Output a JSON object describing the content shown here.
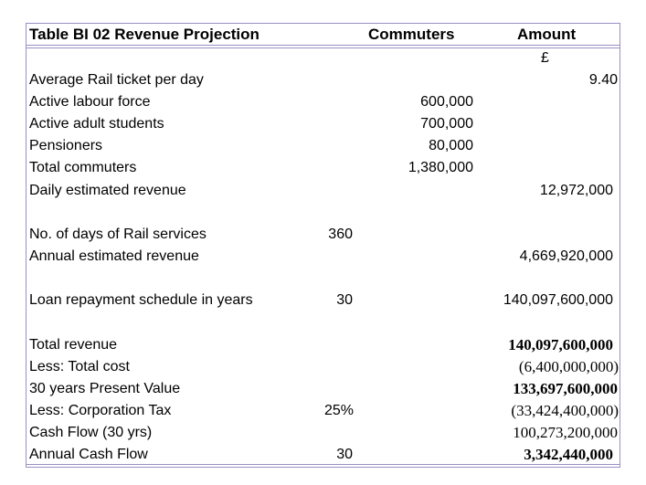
{
  "table": {
    "title": "Table BI 02   Revenue Projection",
    "col_commuters": "Commuters",
    "col_amount": "Amount",
    "currency": "£"
  },
  "rows": [
    {
      "label": "Average Rail ticket per day",
      "mid": "",
      "amount": "9.40"
    },
    {
      "label": "Active labour force",
      "mid": "600,000",
      "amount": ""
    },
    {
      "label": "Active adult students",
      "mid": "700,000",
      "amount": ""
    },
    {
      "label": "Pensioners",
      "mid": "80,000",
      "amount": ""
    },
    {
      "label": "Total commuters",
      "mid": "1,380,000",
      "amount": ""
    },
    {
      "label": "Daily estimated revenue",
      "mid": "",
      "amount": "12,972,000"
    },
    {
      "label": "No. of days of Rail services",
      "param": "360"
    },
    {
      "label": "Annual estimated revenue",
      "amount": "4,669,920,000"
    },
    {
      "label": "Loan repayment schedule in years",
      "param": "30",
      "amount": "140,097,600,000"
    },
    {
      "label": "Total revenue",
      "amount": "140,097,600,000"
    },
    {
      "label": "Less: Total cost",
      "amount": "(6,400,000,000)"
    },
    {
      "label": "30 years Present Value",
      "amount": "133,697,600,000"
    },
    {
      "label": "Less: Corporation Tax",
      "param": "25%",
      "amount": "(33,424,400,000)"
    },
    {
      "label": "Cash Flow (30 yrs)",
      "amount": "100,273,200,000"
    },
    {
      "label": "Annual Cash Flow",
      "param": "30",
      "amount": "3,342,440,000"
    }
  ]
}
